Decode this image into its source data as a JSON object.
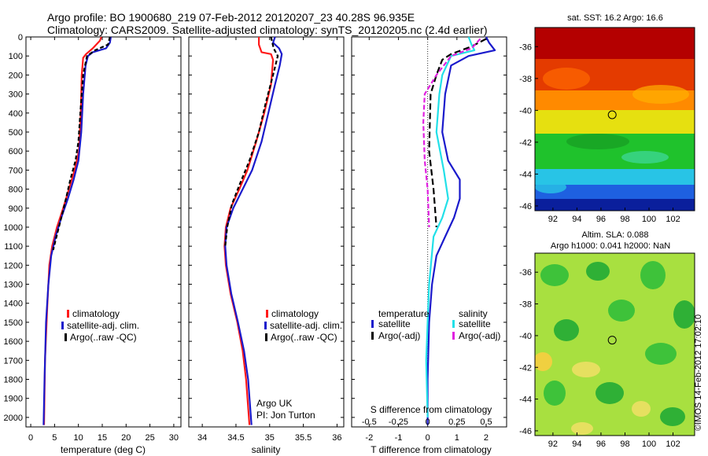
{
  "title_line1": "Argo profile: BO 1900680_219 07-Feb-2012 20120207_23 40.28S 96.935E",
  "title_line2": "Climatology: CARS2009. Satellite-adjusted climatology: synTS_20120205.nc (2.4d earlier)",
  "colors": {
    "climatology": "#ff1a1a",
    "satellite": "#1a1acc",
    "argo": "#000000",
    "s_satellite": "#22e0e8",
    "s_argo": "#e020e0",
    "frame": "#000000"
  },
  "depth_axis": {
    "ylim": [
      0,
      2050
    ],
    "ticks": [
      0,
      100,
      200,
      300,
      400,
      500,
      600,
      700,
      800,
      900,
      1000,
      1100,
      1200,
      1300,
      1400,
      1500,
      1600,
      1700,
      1800,
      1900,
      2000
    ],
    "labels": [
      "0",
      "100",
      "200",
      "300",
      "400",
      "500",
      "600",
      "700",
      "800",
      "900",
      "1000",
      "1100",
      "1200",
      "1300",
      "1400",
      "1500",
      "1600",
      "1700",
      "1800",
      "1900",
      "2000"
    ]
  },
  "legend_profiles": [
    "climatology",
    "satellite-adj. clim.",
    "Argo(..raw -QC)"
  ],
  "legend_diff": {
    "temperature_title": "temperature",
    "salinity_title": "salinity",
    "temperature_items": [
      "satellite",
      "Argo(-adj)"
    ],
    "salinity_items": [
      "satellite",
      "Argo(-adj)"
    ]
  },
  "credit": {
    "line1": "Argo UK",
    "line2": "PI: Jon Turton"
  },
  "watermark": "©IMOS 14-Feb-2012 17:02:10",
  "map_sst": {
    "title": "sat. SST: 16.2  Argo: 16.6",
    "xticks": [
      92,
      94,
      96,
      98,
      100,
      102
    ],
    "yticks": [
      -36,
      -38,
      -40,
      -42,
      -44,
      -46
    ],
    "xlim": [
      90.5,
      103.8
    ],
    "ylim": [
      -46.3,
      -34.8
    ],
    "argo_position": [
      96.935,
      -40.28
    ]
  },
  "map_sla": {
    "title_line1": "Altim. SLA: 0.088",
    "title_line2": "Argo h1000: 0.041  h2000: NaN",
    "xticks": [
      92,
      94,
      96,
      98,
      100,
      102
    ],
    "yticks": [
      -36,
      -38,
      -40,
      -42,
      -44,
      -46
    ],
    "xlim": [
      90.5,
      103.8
    ],
    "ylim": [
      -46.3,
      -34.8
    ],
    "argo_position": [
      96.935,
      -40.28
    ]
  },
  "chart_data": [
    {
      "type": "line",
      "xlabel": "temperature (deg C)",
      "ylabel": "",
      "xlim": [
        -1,
        31.5
      ],
      "ylim": [
        2050,
        0
      ],
      "xticks": [
        0,
        5,
        10,
        15,
        20,
        25,
        30
      ],
      "xticklabels": [
        "0",
        "5",
        "10",
        "15",
        "20",
        "25",
        "30"
      ],
      "series": [
        {
          "name": "climatology",
          "color": "climatology",
          "dash": "",
          "points": [
            [
              14.8,
              0
            ],
            [
              14.5,
              20
            ],
            [
              13.0,
              60
            ],
            [
              11.6,
              90
            ],
            [
              11.0,
              110
            ],
            [
              10.7,
              200
            ],
            [
              10.5,
              400
            ],
            [
              10.1,
              600
            ],
            [
              9.2,
              700
            ],
            [
              8.0,
              800
            ],
            [
              6.8,
              900
            ],
            [
              5.5,
              1000
            ],
            [
              4.5,
              1100
            ],
            [
              3.9,
              1200
            ],
            [
              3.5,
              1400
            ],
            [
              3.0,
              1700
            ],
            [
              2.8,
              2040
            ]
          ]
        },
        {
          "name": "satellite-adj. clim.",
          "color": "satellite",
          "dash": "",
          "points": [
            [
              16.8,
              0
            ],
            [
              16.6,
              30
            ],
            [
              15.8,
              60
            ],
            [
              13.0,
              80
            ],
            [
              12.0,
              100
            ],
            [
              11.5,
              150
            ],
            [
              11.0,
              300
            ],
            [
              10.6,
              500
            ],
            [
              10.0,
              650
            ],
            [
              9.0,
              750
            ],
            [
              7.8,
              850
            ],
            [
              6.4,
              950
            ],
            [
              5.2,
              1050
            ],
            [
              4.3,
              1150
            ],
            [
              3.7,
              1300
            ],
            [
              3.2,
              1500
            ],
            [
              2.9,
              1800
            ],
            [
              2.7,
              2040
            ]
          ]
        },
        {
          "name": "Argo(..raw -QC)",
          "color": "argo",
          "dash": "5,3",
          "points": [
            [
              16.6,
              0
            ],
            [
              16.2,
              40
            ],
            [
              13.5,
              70
            ],
            [
              11.8,
              100
            ],
            [
              11.0,
              200
            ],
            [
              10.4,
              400
            ],
            [
              10.0,
              550
            ],
            [
              9.4,
              650
            ],
            [
              8.3,
              750
            ],
            [
              7.4,
              850
            ],
            [
              6.4,
              950
            ],
            [
              5.4,
              1050
            ],
            [
              4.7,
              1120
            ]
          ]
        }
      ]
    },
    {
      "type": "line",
      "xlabel": "salinity",
      "ylabel": "",
      "xlim": [
        33.8,
        36.1
      ],
      "ylim": [
        2050,
        0
      ],
      "xticks": [
        34,
        34.5,
        35,
        35.5,
        36
      ],
      "xticklabels": [
        "34",
        "34.5",
        "35",
        "35.5",
        "36"
      ],
      "series": [
        {
          "name": "climatology",
          "color": "climatology",
          "dash": "",
          "points": [
            [
              34.84,
              0
            ],
            [
              34.84,
              40
            ],
            [
              34.88,
              80
            ],
            [
              35.02,
              90
            ],
            [
              35.05,
              120
            ],
            [
              35.02,
              250
            ],
            [
              34.92,
              400
            ],
            [
              34.8,
              550
            ],
            [
              34.67,
              700
            ],
            [
              34.55,
              800
            ],
            [
              34.42,
              900
            ],
            [
              34.35,
              1000
            ],
            [
              34.33,
              1100
            ],
            [
              34.35,
              1200
            ],
            [
              34.42,
              1350
            ],
            [
              34.52,
              1500
            ],
            [
              34.6,
              1650
            ],
            [
              34.65,
              1800
            ],
            [
              34.7,
              2040
            ]
          ]
        },
        {
          "name": "satellite-adj. clim.",
          "color": "satellite",
          "dash": "",
          "points": [
            [
              35.08,
              0
            ],
            [
              35.05,
              30
            ],
            [
              35.14,
              60
            ],
            [
              35.18,
              90
            ],
            [
              35.15,
              150
            ],
            [
              35.08,
              250
            ],
            [
              34.98,
              400
            ],
            [
              34.88,
              550
            ],
            [
              34.74,
              700
            ],
            [
              34.6,
              800
            ],
            [
              34.46,
              900
            ],
            [
              34.36,
              1000
            ],
            [
              34.34,
              1100
            ],
            [
              34.36,
              1200
            ],
            [
              34.43,
              1350
            ],
            [
              34.53,
              1500
            ],
            [
              34.62,
              1650
            ],
            [
              34.68,
              1800
            ],
            [
              34.73,
              2040
            ]
          ]
        },
        {
          "name": "Argo(..raw -QC)",
          "color": "argo",
          "dash": "5,3",
          "points": [
            [
              35.02,
              0
            ],
            [
              35.06,
              60
            ],
            [
              35.12,
              100
            ],
            [
              35.05,
              200
            ],
            [
              34.94,
              350
            ],
            [
              34.84,
              500
            ],
            [
              34.7,
              650
            ],
            [
              34.55,
              780
            ],
            [
              34.44,
              880
            ],
            [
              34.37,
              1000
            ],
            [
              34.34,
              1100
            ]
          ]
        }
      ]
    },
    {
      "type": "line",
      "xlabel": "T difference from climatology",
      "ylabel": "",
      "xlim": [
        -2.6,
        2.7
      ],
      "ylim": [
        2050,
        0
      ],
      "xticks": [
        -2,
        -1,
        0,
        1,
        2
      ],
      "xticklabels": [
        "-2",
        "-1",
        "0",
        "1",
        "2"
      ],
      "secondary_axis": {
        "label": "S difference from climatology",
        "ticks": [
          -0.5,
          -0.25,
          0,
          0.25,
          0.5
        ],
        "ticklabels": [
          "-0.5",
          "-0.25",
          "0",
          "0.25",
          "0.5"
        ],
        "scale": 4
      },
      "zero_line": 0,
      "series": [
        {
          "name": "satellite",
          "group": "temperature",
          "color": "satellite",
          "dash": "",
          "points": [
            [
              2.0,
              0
            ],
            [
              2.1,
              30
            ],
            [
              2.3,
              70
            ],
            [
              1.4,
              100
            ],
            [
              0.8,
              150
            ],
            [
              0.6,
              300
            ],
            [
              0.5,
              500
            ],
            [
              0.7,
              650
            ],
            [
              1.1,
              750
            ],
            [
              1.1,
              850
            ],
            [
              0.9,
              950
            ],
            [
              0.6,
              1050
            ],
            [
              0.3,
              1150
            ],
            [
              0.15,
              1300
            ],
            [
              0.05,
              1500
            ],
            [
              0.0,
              1800
            ],
            [
              0.0,
              2040
            ]
          ]
        },
        {
          "name": "Argo(-adj)",
          "group": "temperature",
          "color": "argo",
          "dash": "8,4",
          "points": [
            [
              2.0,
              10
            ],
            [
              1.5,
              50
            ],
            [
              0.8,
              90
            ],
            [
              0.5,
              120
            ],
            [
              0.3,
              200
            ],
            [
              0.1,
              300
            ],
            [
              0.05,
              600
            ],
            [
              0.2,
              800
            ],
            [
              0.3,
              1000
            ]
          ]
        },
        {
          "name": "satellite",
          "group": "salinity",
          "color": "s_satellite",
          "dash": "",
          "points": [
            [
              1.4,
              0
            ],
            [
              1.5,
              40
            ],
            [
              1.6,
              70
            ],
            [
              0.8,
              100
            ],
            [
              0.5,
              200
            ],
            [
              0.4,
              300
            ],
            [
              0.3,
              500
            ],
            [
              0.55,
              700
            ],
            [
              0.7,
              850
            ],
            [
              0.5,
              950
            ],
            [
              0.2,
              1050
            ],
            [
              0.05,
              1300
            ],
            [
              0.0,
              1500
            ],
            [
              -0.05,
              1700
            ],
            [
              0.0,
              2000
            ]
          ]
        },
        {
          "name": "Argo(-adj)",
          "group": "salinity",
          "color": "s_argo",
          "dash": "6,3",
          "points": [
            [
              1.8,
              10
            ],
            [
              1.5,
              60
            ],
            [
              0.8,
              100
            ],
            [
              0.3,
              200
            ],
            [
              -0.1,
              300
            ],
            [
              -0.15,
              450
            ],
            [
              -0.1,
              650
            ],
            [
              0.0,
              800
            ],
            [
              0.05,
              1000
            ]
          ]
        }
      ]
    }
  ]
}
